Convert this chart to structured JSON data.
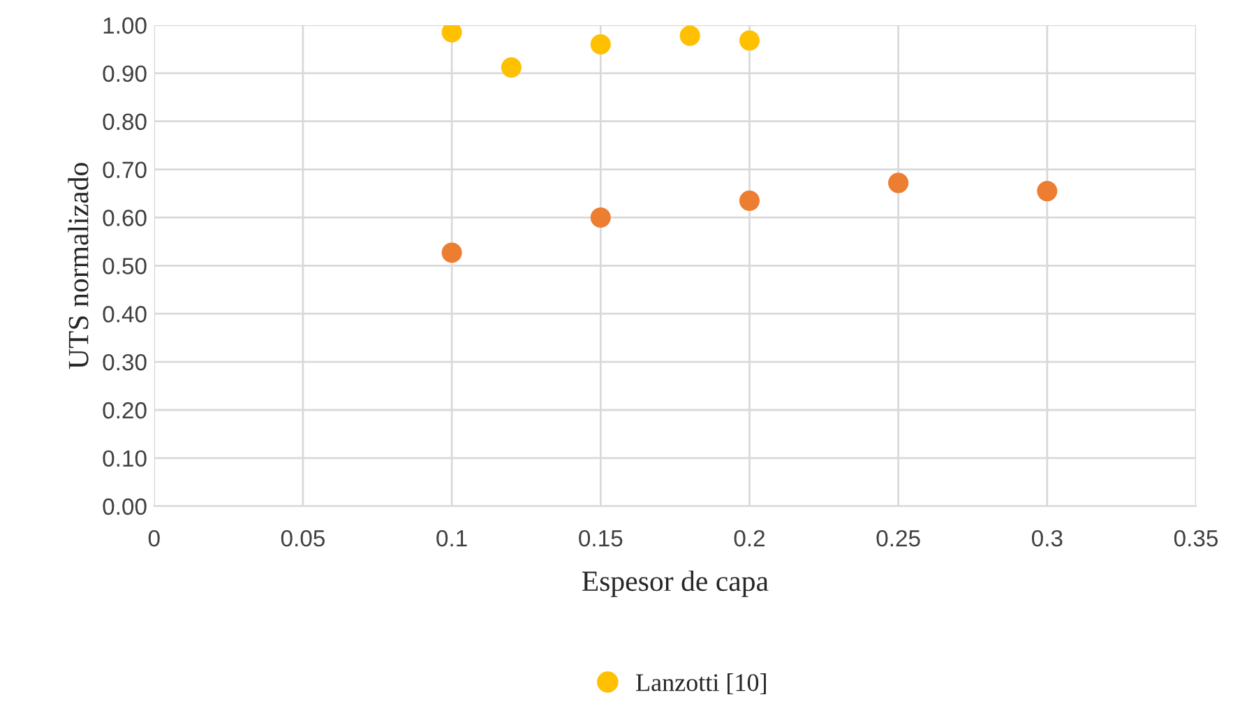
{
  "chart_data": {
    "type": "scatter",
    "xlabel": "Espesor de capa",
    "ylabel": "UTS normalizado",
    "series": [
      {
        "color": "#ed7d31",
        "x": [
          0.1,
          0.15,
          0.2,
          0.25,
          0.3
        ],
        "values": [
          0.527,
          0.6,
          0.635,
          0.672,
          0.655
        ]
      },
      {
        "name": "Lanzotti [10]",
        "color": "#ffc000",
        "x": [
          0.1,
          0.12,
          0.15,
          0.18,
          0.2
        ],
        "values": [
          0.985,
          0.912,
          0.96,
          0.978,
          0.968
        ]
      }
    ],
    "xlim": [
      0,
      0.35
    ],
    "xticks": [
      0,
      0.05,
      0.1,
      0.15,
      0.2,
      0.25,
      0.3,
      0.35
    ],
    "ylim": [
      0,
      1.0
    ],
    "yticks": [
      {
        "value": 0,
        "label": "0.00"
      },
      {
        "value": 0.1,
        "label": "0.10"
      },
      {
        "value": 0.2,
        "label": "0.20"
      },
      {
        "value": 0.3,
        "label": "0.30"
      },
      {
        "value": 0.4,
        "label": "0.40"
      },
      {
        "value": 0.5,
        "label": "0.50"
      },
      {
        "value": 0.6,
        "label": "0.60"
      },
      {
        "value": 0.7,
        "label": "0.70"
      },
      {
        "value": 0.8,
        "label": "0.80"
      },
      {
        "value": 0.9,
        "label": "0.90"
      },
      {
        "value": 1.0,
        "label": "1.00"
      }
    ],
    "grid": true,
    "legend": "bottom",
    "marker": "circle"
  }
}
